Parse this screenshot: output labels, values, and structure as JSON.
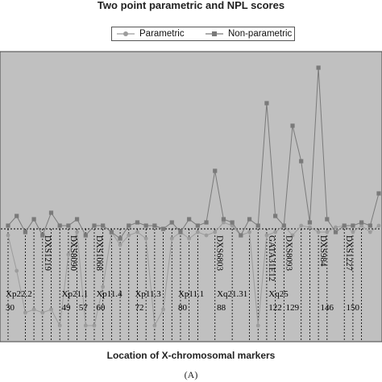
{
  "chart_data": {
    "type": "line",
    "title": "Two point parametric and NPL scores",
    "xlabel": "Location of X-chromosomal markers",
    "ylabel": "",
    "panel_label": "(A)",
    "legend": {
      "position": "top-center",
      "entries": [
        "Parametric",
        "Non-parametric"
      ]
    },
    "colors": {
      "plot_bg": "#c0c0c0",
      "parametric": "#9c9c9c",
      "non_parametric": "#7a7a7a",
      "marker_line": "#000000"
    },
    "baseline_value": 0,
    "ylim": [
      -3.5,
      5.5
    ],
    "xlim": [
      1,
      44
    ],
    "x": [
      1,
      2,
      3,
      4,
      5,
      6,
      7,
      8,
      9,
      10,
      11,
      12,
      13,
      14,
      15,
      16,
      17,
      18,
      19,
      20,
      21,
      22,
      23,
      24,
      25,
      26,
      27,
      28,
      29,
      30,
      31,
      32,
      33,
      34,
      35,
      36,
      37,
      38,
      39,
      40,
      41,
      42,
      43,
      44
    ],
    "series": [
      {
        "name": "Parametric",
        "marker": "circle",
        "values": [
          -0.2,
          -1.3,
          -2.6,
          -2.5,
          -2.6,
          -2.5,
          -3,
          -0.8,
          -0.1,
          -3,
          -3,
          -1.8,
          -0.1,
          -0.5,
          -0.2,
          -0.1,
          -0.3,
          -3,
          -2.5,
          -0.3,
          -0.1,
          -0.3,
          -0.1,
          -0.2,
          -0.1,
          0.2,
          0.1,
          -0.2,
          -0.1,
          -3,
          -0.2,
          -0.1,
          0.1,
          -0.2,
          0.1,
          0.05,
          -0.1,
          -0.1,
          0.05,
          0.1,
          -0.1,
          0.1,
          -0.1,
          0.1
        ]
      },
      {
        "name": "Non-parametric",
        "marker": "square",
        "values": [
          0.1,
          0.4,
          -0.1,
          0.3,
          -0.2,
          0.5,
          0.1,
          0.1,
          0.3,
          -0.2,
          0.1,
          0.1,
          -0.1,
          -0.3,
          0.1,
          0.2,
          0.1,
          0.1,
          0,
          0.2,
          -0.1,
          0.3,
          0.1,
          0.2,
          1.8,
          0.3,
          0.2,
          -0.2,
          0.3,
          0.1,
          3.9,
          0.4,
          0.1,
          3.2,
          2.1,
          0.2,
          5,
          0.3,
          -0.1,
          0.1,
          0.1,
          0.2,
          0.1,
          1.1
        ]
      }
    ],
    "marker_labels": [
      {
        "name": "DXS1219",
        "x": 5
      },
      {
        "name": "DXS8090",
        "x": 8
      },
      {
        "name": "DXS1068",
        "x": 11
      },
      {
        "name": "DXS6803",
        "x": 25
      },
      {
        "name": "GATA31E12",
        "x": 31
      },
      {
        "name": "DXS8093",
        "x": 33
      },
      {
        "name": "DXS984",
        "x": 37
      },
      {
        "name": "DXS1227",
        "x": 40
      }
    ],
    "band_labels": [
      {
        "band": "Xp22.2",
        "cM": "30",
        "x": 1
      },
      {
        "band": "Xp21.1",
        "cM": "49",
        "x": 7.5
      },
      {
        "band": "",
        "cM": "57",
        "x": 9.5
      },
      {
        "band": "Xp11.4",
        "cM": "60",
        "x": 11.5
      },
      {
        "band": "Xp11.3",
        "cM": "72",
        "x": 16
      },
      {
        "band": "Xp11.1",
        "cM": "80",
        "x": 21
      },
      {
        "band": "Xq21.31",
        "cM": "88",
        "x": 25.5
      },
      {
        "band": "Xq25",
        "cM": "122",
        "x": 31.5
      },
      {
        "band": "",
        "cM": "129",
        "x": 33.5
      },
      {
        "band": "",
        "cM": "146",
        "x": 37.5
      },
      {
        "band": "",
        "cM": "150",
        "x": 40.5
      }
    ],
    "guide_lines_x": [
      1,
      3,
      4,
      5,
      6,
      7,
      8,
      9,
      10,
      11,
      12,
      13,
      14,
      15,
      16,
      17,
      18,
      19,
      20,
      21,
      22,
      23,
      25,
      27,
      29,
      30,
      31,
      32,
      33,
      35,
      36,
      37,
      38,
      40,
      41,
      42
    ]
  }
}
